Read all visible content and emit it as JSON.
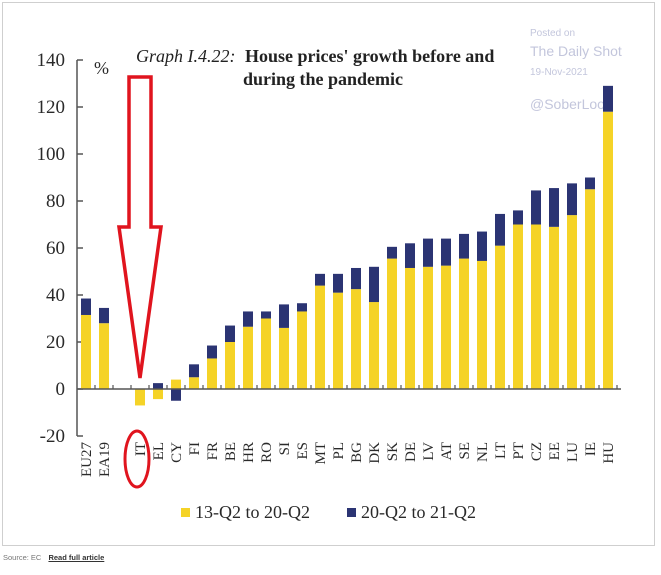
{
  "chart_data": {
    "type": "bar",
    "stacked": true,
    "title_prefix": "Graph I.4.22:",
    "title_line1": "House prices' growth before and",
    "title_line2": "during the pandemic",
    "ylabel": "%",
    "xlabel": "",
    "ylim": [
      -20,
      140
    ],
    "yticks": [
      -20,
      0,
      20,
      40,
      60,
      80,
      100,
      120,
      140
    ],
    "grid": false,
    "legend_position": "bottom-center",
    "categories": [
      "EU27",
      "EA19",
      "",
      "IT",
      "EL",
      "CY",
      "FI",
      "FR",
      "BE",
      "HR",
      "RO",
      "SI",
      "ES",
      "MT",
      "PL",
      "BG",
      "DK",
      "SK",
      "DE",
      "LV",
      "AT",
      "SE",
      "NL",
      "LT",
      "PT",
      "CZ",
      "EE",
      "LU",
      "IE",
      "HU"
    ],
    "series": [
      {
        "name": "13-Q2 to 20-Q2",
        "color": "#f5d327",
        "values": [
          31.5,
          28,
          null,
          -7,
          -4.3,
          4,
          5,
          13,
          20,
          26.5,
          30,
          26,
          33,
          44,
          41,
          42.5,
          37,
          55.5,
          51.5,
          52,
          52.5,
          55.5,
          54.5,
          61,
          70,
          70,
          69,
          74,
          85,
          118
        ]
      },
      {
        "name": "20-Q2 to 21-Q2",
        "color": "#2b3473",
        "values": [
          7,
          6.5,
          null,
          0,
          2.5,
          -5,
          5.5,
          5.5,
          7,
          6.5,
          3,
          10,
          3.5,
          5,
          8,
          9,
          15,
          5,
          10.5,
          12,
          11.5,
          10.5,
          12.5,
          13.5,
          6,
          14.5,
          16.5,
          13.5,
          5,
          11
        ]
      }
    ],
    "annotations": {
      "highlight_category": "IT",
      "arrow_color": "#e0141e",
      "ellipse_color": "#e0141e"
    }
  },
  "watermark": {
    "posted_on": "Posted on",
    "brand": "The Daily Shot",
    "date": "19-Nov-2021",
    "handle": "@SoberLook"
  },
  "footer": {
    "source": "Source: EC",
    "link": "Read full article"
  }
}
